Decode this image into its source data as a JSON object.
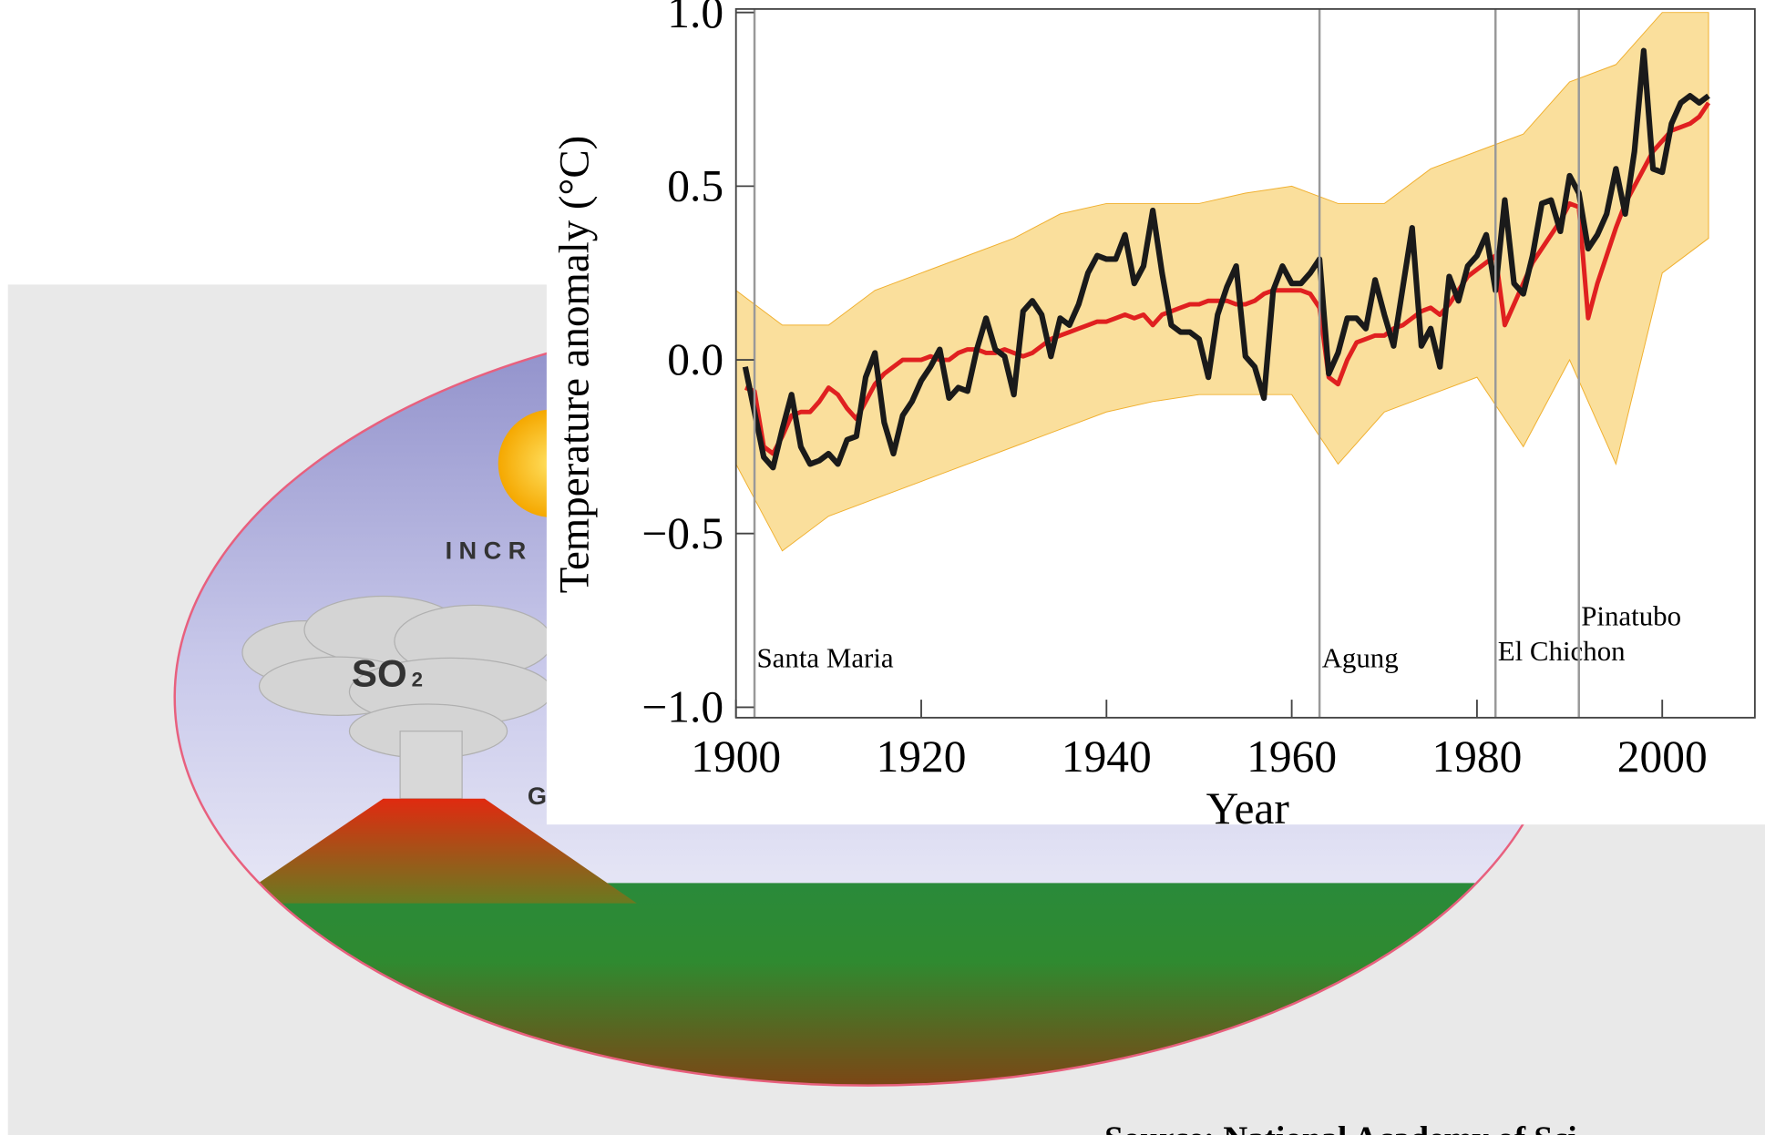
{
  "chart_data": {
    "type": "line",
    "y_label": "Temperature anomaly (°C)",
    "x_label": "Year",
    "xlim": [
      1900,
      2010
    ],
    "ylim": [
      -1.03,
      1.01
    ],
    "xticks": [
      1900,
      1920,
      1940,
      1960,
      1980,
      2000
    ],
    "yticks": [
      {
        "value": 1.0,
        "label": "1.0"
      },
      {
        "value": 0.5,
        "label": "0.5"
      },
      {
        "value": 0.0,
        "label": "0.0"
      },
      {
        "value": -0.5,
        "label": "−0.5"
      },
      {
        "value": -1.0,
        "label": "−1.0"
      }
    ],
    "x": [
      1901,
      1902,
      1903,
      1904,
      1905,
      1906,
      1907,
      1908,
      1909,
      1910,
      1911,
      1912,
      1913,
      1914,
      1915,
      1916,
      1917,
      1918,
      1919,
      1920,
      1921,
      1922,
      1923,
      1924,
      1925,
      1926,
      1927,
      1928,
      1929,
      1930,
      1931,
      1932,
      1933,
      1934,
      1935,
      1936,
      1937,
      1938,
      1939,
      1940,
      1941,
      1942,
      1943,
      1944,
      1945,
      1946,
      1947,
      1948,
      1949,
      1950,
      1951,
      1952,
      1953,
      1954,
      1955,
      1956,
      1957,
      1958,
      1959,
      1960,
      1961,
      1962,
      1963,
      1964,
      1965,
      1966,
      1967,
      1968,
      1969,
      1970,
      1971,
      1972,
      1973,
      1974,
      1975,
      1976,
      1977,
      1978,
      1979,
      1980,
      1981,
      1982,
      1983,
      1984,
      1985,
      1986,
      1987,
      1988,
      1989,
      1990,
      1991,
      1992,
      1993,
      1994,
      1995,
      1996,
      1997,
      1998,
      1999,
      2000,
      2001,
      2002,
      2003,
      2004,
      2005
    ],
    "series": [
      {
        "color": "#e02020",
        "values": [
          -0.08,
          -0.09,
          -0.25,
          -0.27,
          -0.22,
          -0.16,
          -0.15,
          -0.15,
          -0.12,
          -0.08,
          -0.1,
          -0.14,
          -0.17,
          -0.12,
          -0.07,
          -0.04,
          -0.02,
          0.0,
          0.0,
          0.0,
          0.01,
          0.0,
          0.0,
          0.02,
          0.03,
          0.03,
          0.02,
          0.02,
          0.03,
          0.02,
          0.01,
          0.02,
          0.04,
          0.06,
          0.07,
          0.08,
          0.09,
          0.1,
          0.11,
          0.11,
          0.12,
          0.13,
          0.12,
          0.13,
          0.1,
          0.13,
          0.14,
          0.15,
          0.16,
          0.16,
          0.17,
          0.17,
          0.17,
          0.16,
          0.16,
          0.17,
          0.19,
          0.2,
          0.2,
          0.2,
          0.2,
          0.19,
          0.15,
          -0.05,
          -0.07,
          0.0,
          0.05,
          0.06,
          0.07,
          0.07,
          0.09,
          0.1,
          0.12,
          0.14,
          0.15,
          0.13,
          0.16,
          0.2,
          0.24,
          0.26,
          0.28,
          0.3,
          0.1,
          0.16,
          0.22,
          0.28,
          0.32,
          0.36,
          0.4,
          0.45,
          0.44,
          0.12,
          0.22,
          0.3,
          0.38,
          0.45,
          0.5,
          0.55,
          0.6,
          0.63,
          0.66,
          0.67,
          0.68,
          0.7,
          0.74
        ]
      },
      {
        "color": "#1a1a1a",
        "values": [
          -0.02,
          -0.15,
          -0.28,
          -0.31,
          -0.2,
          -0.1,
          -0.25,
          -0.3,
          -0.29,
          -0.27,
          -0.3,
          -0.23,
          -0.22,
          -0.05,
          0.02,
          -0.18,
          -0.27,
          -0.16,
          -0.12,
          -0.06,
          -0.02,
          0.03,
          -0.11,
          -0.08,
          -0.09,
          0.03,
          0.12,
          0.03,
          0.01,
          -0.1,
          0.14,
          0.17,
          0.13,
          0.01,
          0.12,
          0.1,
          0.16,
          0.25,
          0.3,
          0.29,
          0.29,
          0.36,
          0.22,
          0.27,
          0.43,
          0.25,
          0.1,
          0.08,
          0.08,
          0.06,
          -0.05,
          0.13,
          0.21,
          0.27,
          0.01,
          -0.02,
          -0.11,
          0.2,
          0.27,
          0.22,
          0.22,
          0.25,
          0.29,
          -0.04,
          0.02,
          0.12,
          0.12,
          0.09,
          0.23,
          0.13,
          0.04,
          0.21,
          0.38,
          0.04,
          0.09,
          -0.02,
          0.24,
          0.17,
          0.27,
          0.3,
          0.36,
          0.2,
          0.46,
          0.22,
          0.19,
          0.3,
          0.45,
          0.46,
          0.37,
          0.53,
          0.48,
          0.32,
          0.36,
          0.42,
          0.55,
          0.42,
          0.6,
          0.89,
          0.55,
          0.54,
          0.68,
          0.74,
          0.76,
          0.74,
          0.76
        ]
      }
    ],
    "ensemble_range": {
      "color": "#f7c95a",
      "x": [
        1900,
        1905,
        1910,
        1915,
        1920,
        1925,
        1930,
        1935,
        1940,
        1945,
        1950,
        1955,
        1960,
        1965,
        1970,
        1975,
        1980,
        1985,
        1990,
        1995,
        2000,
        2005
      ],
      "lower": [
        -0.3,
        -0.55,
        -0.45,
        -0.4,
        -0.35,
        -0.3,
        -0.25,
        -0.2,
        -0.15,
        -0.12,
        -0.1,
        -0.1,
        -0.1,
        -0.3,
        -0.15,
        -0.1,
        -0.05,
        -0.25,
        0.0,
        -0.3,
        0.25,
        0.35
      ],
      "upper": [
        0.2,
        0.1,
        0.1,
        0.2,
        0.25,
        0.3,
        0.35,
        0.42,
        0.45,
        0.45,
        0.45,
        0.48,
        0.5,
        0.45,
        0.45,
        0.55,
        0.6,
        0.65,
        0.8,
        0.85,
        1.0,
        1.0
      ]
    },
    "annotations": [
      {
        "text": "Santa Maria",
        "x": 1902
      },
      {
        "text": "Agung",
        "x": 1963
      },
      {
        "text": "El Chichon",
        "x": 1982
      },
      {
        "text": "Pinatubo",
        "x": 1991
      }
    ]
  },
  "background": {
    "sun_text": "INCR",
    "gas_text": "SO",
    "gas_subscript": "2",
    "ground_text": "G",
    "source": "Source: National Academy of Sci"
  }
}
